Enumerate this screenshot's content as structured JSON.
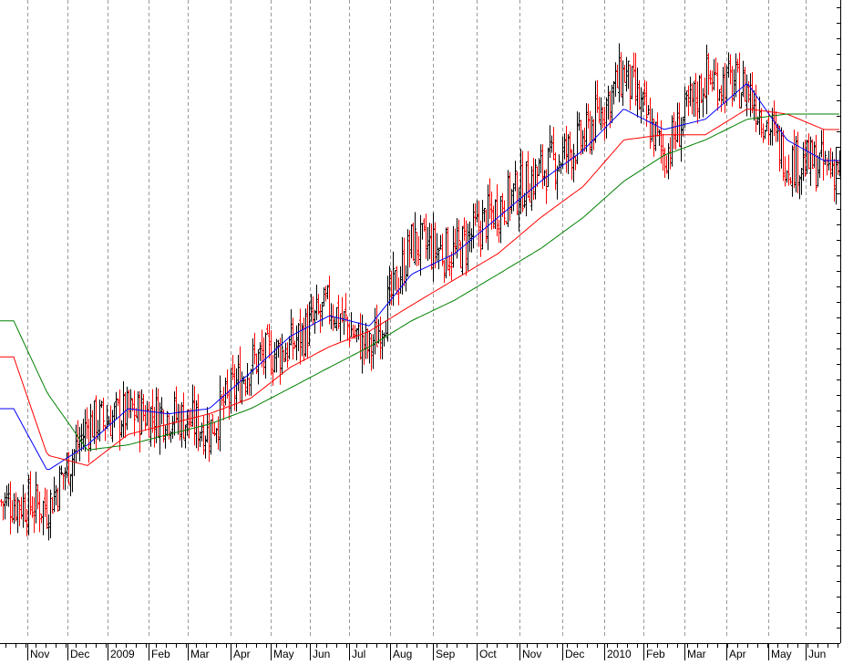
{
  "chart_data": {
    "type": "line",
    "subtype": "candlestick-with-moving-averages",
    "title": "",
    "xlabel": "",
    "ylabel": "",
    "x_tick_labels": [
      "Nov",
      "Dec",
      "2009",
      "Feb",
      "Mar",
      "Apr",
      "May",
      "Jun",
      "Jul",
      "Aug",
      "Sep",
      "Oct",
      "Nov",
      "Dec",
      "2010",
      "Feb",
      "Mar",
      "Apr",
      "May",
      "Jun"
    ],
    "grid": {
      "vertical": true,
      "horizontal": false,
      "style": "dashed"
    },
    "legend": "none",
    "price_axis": "right",
    "candle_colors": {
      "up": "#000000",
      "down": "#ff0000"
    },
    "series": [
      {
        "key": "price",
        "kind": "candles",
        "color": "#000000",
        "x": [
          "2008-10",
          "2008-11",
          "2008-12",
          "2009-01",
          "2009-02",
          "2009-03",
          "2009-04",
          "2009-05",
          "2009-06",
          "2009-07",
          "2009-08",
          "2009-09",
          "2009-10",
          "2009-11",
          "2009-12",
          "2010-01",
          "2010-02",
          "2010-03",
          "2010-04",
          "2010-05",
          "2010-06"
        ],
        "values": [
          0.3,
          0.29,
          0.45,
          0.47,
          0.47,
          0.44,
          0.57,
          0.6,
          0.68,
          0.59,
          0.8,
          0.78,
          0.87,
          0.94,
          1.0,
          1.13,
          0.97,
          1.12,
          1.1,
          0.96,
          0.95
        ]
      },
      {
        "key": "ma-short",
        "kind": "line",
        "color": "#0000ff",
        "x": [
          "2008-10",
          "2008-11",
          "2008-12",
          "2009-01",
          "2009-02",
          "2009-03",
          "2009-04",
          "2009-05",
          "2009-06",
          "2009-07",
          "2009-08",
          "2009-09",
          "2009-10",
          "2009-11",
          "2009-12",
          "2010-01",
          "2010-02",
          "2010-03",
          "2010-04",
          "2010-05",
          "2010-06"
        ],
        "values": [
          0.48,
          0.36,
          0.41,
          0.48,
          0.47,
          0.48,
          0.55,
          0.62,
          0.66,
          0.64,
          0.74,
          0.78,
          0.85,
          0.92,
          0.98,
          1.06,
          1.02,
          1.04,
          1.11,
          1.0,
          0.96
        ]
      },
      {
        "key": "ma-medium",
        "kind": "line",
        "color": "#ff0000",
        "x": [
          "2008-10",
          "2008-11",
          "2008-12",
          "2009-01",
          "2009-02",
          "2009-03",
          "2009-04",
          "2009-05",
          "2009-06",
          "2009-07",
          "2009-08",
          "2009-09",
          "2009-10",
          "2009-11",
          "2009-12",
          "2010-01",
          "2010-02",
          "2010-03",
          "2010-04",
          "2010-05",
          "2010-06"
        ],
        "values": [
          0.58,
          0.39,
          0.37,
          0.43,
          0.45,
          0.47,
          0.5,
          0.56,
          0.6,
          0.63,
          0.68,
          0.73,
          0.78,
          0.85,
          0.91,
          1.0,
          1.01,
          1.01,
          1.06,
          1.05,
          1.02
        ]
      },
      {
        "key": "ma-long",
        "kind": "line",
        "color": "#008000",
        "x": [
          "2008-10",
          "2008-11",
          "2008-12",
          "2009-01",
          "2009-02",
          "2009-03",
          "2009-04",
          "2009-05",
          "2009-06",
          "2009-07",
          "2009-08",
          "2009-09",
          "2009-10",
          "2009-11",
          "2009-12",
          "2010-01",
          "2010-02",
          "2010-03",
          "2010-04",
          "2010-05",
          "2010-06"
        ],
        "values": [
          0.65,
          0.51,
          0.4,
          0.41,
          0.43,
          0.45,
          0.48,
          0.52,
          0.56,
          0.6,
          0.65,
          0.69,
          0.74,
          0.79,
          0.85,
          0.92,
          0.97,
          1.0,
          1.04,
          1.05,
          1.05
        ]
      }
    ]
  }
}
